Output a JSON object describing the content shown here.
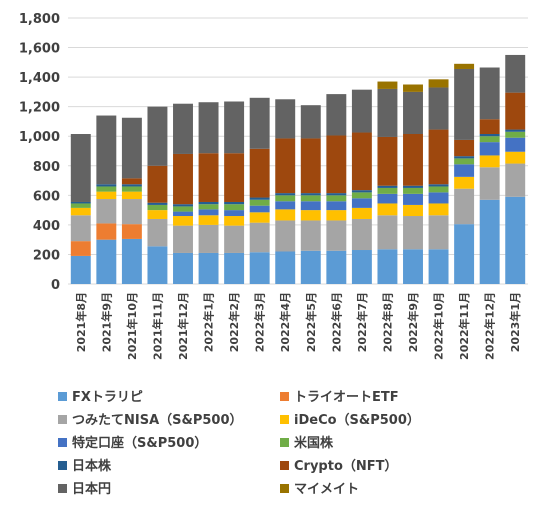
{
  "chart_data": {
    "type": "bar",
    "stacked": true,
    "categories": [
      "2021年8月",
      "2021年9月",
      "2021年10月",
      "2021年11月",
      "2021年12月",
      "2022年1月",
      "2022年2月",
      "2022年3月",
      "2022年4月",
      "2022年5月",
      "2022年6月",
      "2022年7月",
      "2022年8月",
      "2022年9月",
      "2022年10月",
      "2022年11月",
      "2022年12月",
      "2023年1月"
    ],
    "ylim": [
      0,
      1800
    ],
    "yticks": [
      "0",
      "200",
      "400",
      "600",
      "800",
      "1,000",
      "1,200",
      "1,400",
      "1,600",
      "1,800"
    ],
    "ytick_values": [
      0,
      200,
      400,
      600,
      800,
      1000,
      1200,
      1400,
      1600,
      1800
    ],
    "grid": true,
    "legend_position": "bottom",
    "series": [
      {
        "name": "FXトラリピ",
        "color": "#5b9bd5",
        "values": [
          190,
          300,
          305,
          255,
          210,
          210,
          210,
          215,
          220,
          225,
          225,
          230,
          235,
          235,
          235,
          405,
          570,
          590
        ]
      },
      {
        "name": "トライオートETF",
        "color": "#ed7d31",
        "values": [
          100,
          110,
          100,
          0,
          0,
          0,
          0,
          0,
          0,
          0,
          0,
          0,
          0,
          0,
          0,
          0,
          0,
          0
        ]
      },
      {
        "name": "つみたてNISA（S&P500）",
        "color": "#a5a5a5",
        "values": [
          175,
          165,
          170,
          185,
          185,
          190,
          185,
          200,
          210,
          205,
          205,
          210,
          230,
          225,
          230,
          240,
          220,
          225
        ]
      },
      {
        "name": "iDeCo（S&P500）",
        "color": "#ffc000",
        "values": [
          50,
          50,
          50,
          60,
          65,
          65,
          65,
          70,
          75,
          70,
          70,
          75,
          80,
          75,
          80,
          80,
          80,
          80
        ]
      },
      {
        "name": "特定口座（S&P500）",
        "color": "#4472c4",
        "values": [
          0,
          0,
          0,
          0,
          30,
          40,
          40,
          45,
          55,
          60,
          60,
          65,
          65,
          75,
          75,
          85,
          90,
          95
        ]
      },
      {
        "name": "米国株",
        "color": "#70ad47",
        "values": [
          30,
          35,
          35,
          35,
          35,
          35,
          40,
          40,
          40,
          40,
          40,
          40,
          40,
          40,
          40,
          40,
          40,
          40
        ]
      },
      {
        "name": "日本株",
        "color": "#255e91",
        "values": [
          10,
          15,
          15,
          15,
          15,
          15,
          15,
          15,
          15,
          15,
          15,
          15,
          15,
          15,
          15,
          15,
          15,
          15
        ]
      },
      {
        "name": "Crypto（NFT）",
        "color": "#9e480e",
        "values": [
          0,
          0,
          40,
          250,
          340,
          330,
          330,
          330,
          370,
          370,
          390,
          390,
          330,
          350,
          370,
          110,
          100,
          250
        ]
      },
      {
        "name": "日本円",
        "color": "#636363",
        "values": [
          460,
          465,
          410,
          400,
          340,
          345,
          350,
          345,
          265,
          225,
          280,
          290,
          325,
          285,
          285,
          480,
          350,
          255
        ]
      },
      {
        "name": "マイメイト",
        "color": "#997300",
        "values": [
          0,
          0,
          0,
          0,
          0,
          0,
          0,
          0,
          0,
          0,
          0,
          0,
          50,
          50,
          55,
          35,
          0,
          0
        ]
      }
    ],
    "legend_order": [
      0,
      1,
      2,
      3,
      4,
      5,
      6,
      7,
      8,
      9
    ]
  }
}
